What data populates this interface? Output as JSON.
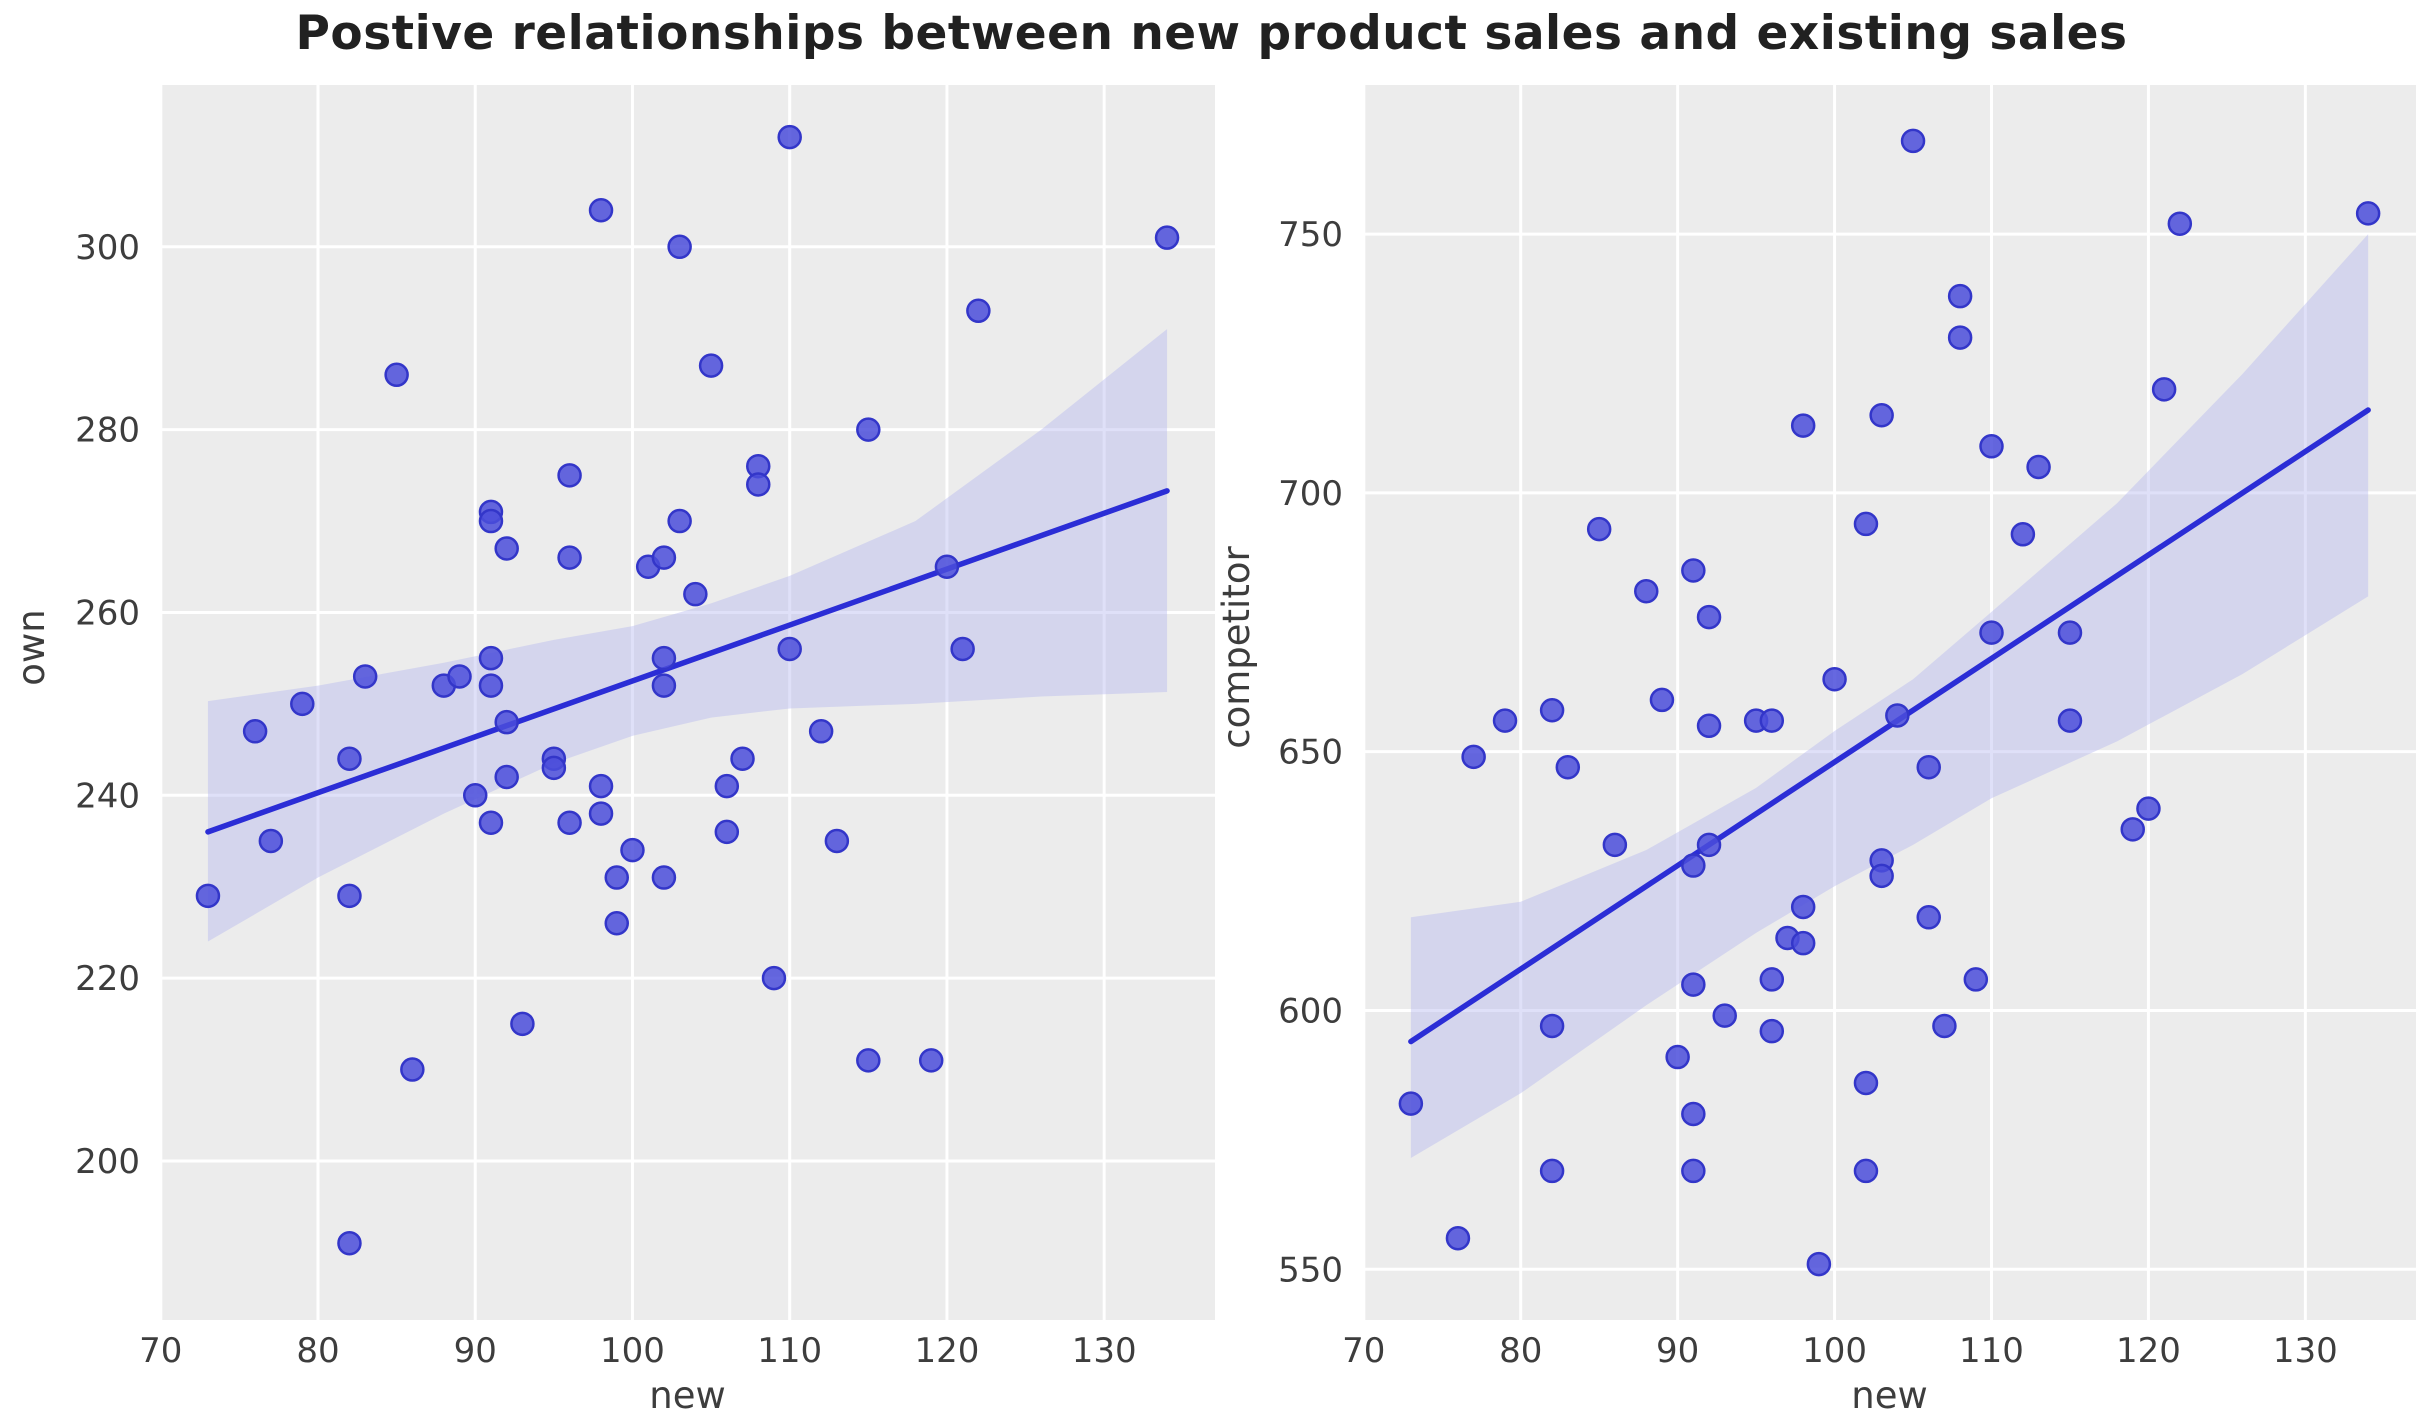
{
  "title": "Postive relationships between new product sales and existing sales",
  "style": {
    "axes_background": "#ececec",
    "gridline_color": "#ffffff",
    "marker_fill": "#4b4edb",
    "marker_edge": "#3336c9",
    "line_color": "#2b2dd6",
    "band_color": "#b9bbef",
    "tick_label_color": "#3d3d3d",
    "axis_label_color": "#3d3d3d",
    "title_color": "#212121"
  },
  "chart_data": [
    {
      "type": "scatter",
      "title": "",
      "xlabel": "new",
      "ylabel": "own",
      "grid": true,
      "legend": "none",
      "xlim": [
        69.95,
        137.05
      ],
      "ylim": [
        182.6,
        317.7
      ],
      "x_ticks": [
        70,
        80,
        90,
        100,
        110,
        120,
        130
      ],
      "y_ticks": [
        200,
        220,
        240,
        260,
        280,
        300
      ],
      "points": [
        [
          73,
          229
        ],
        [
          76,
          247
        ],
        [
          77,
          235
        ],
        [
          79,
          250
        ],
        [
          82,
          244
        ],
        [
          82,
          229
        ],
        [
          82,
          191
        ],
        [
          83,
          253
        ],
        [
          85,
          286
        ],
        [
          86,
          210
        ],
        [
          88,
          252
        ],
        [
          89,
          253
        ],
        [
          90,
          240
        ],
        [
          91,
          271
        ],
        [
          91,
          270
        ],
        [
          91,
          255
        ],
        [
          91,
          252
        ],
        [
          91,
          237
        ],
        [
          92,
          267
        ],
        [
          92,
          248
        ],
        [
          92,
          242
        ],
        [
          93,
          215
        ],
        [
          95,
          244
        ],
        [
          95,
          243
        ],
        [
          96,
          275
        ],
        [
          96,
          266
        ],
        [
          96,
          237
        ],
        [
          98,
          304
        ],
        [
          98,
          241
        ],
        [
          98,
          238
        ],
        [
          99,
          231
        ],
        [
          99,
          226
        ],
        [
          100,
          234
        ],
        [
          101,
          265
        ],
        [
          102,
          266
        ],
        [
          102,
          255
        ],
        [
          102,
          252
        ],
        [
          102,
          231
        ],
        [
          103,
          300
        ],
        [
          103,
          270
        ],
        [
          104,
          262
        ],
        [
          105,
          287
        ],
        [
          106,
          241
        ],
        [
          106,
          236
        ],
        [
          107,
          244
        ],
        [
          108,
          276
        ],
        [
          108,
          274
        ],
        [
          109,
          220
        ],
        [
          110,
          312
        ],
        [
          110,
          256
        ],
        [
          112,
          247
        ],
        [
          113,
          235
        ],
        [
          115,
          280
        ],
        [
          115,
          211
        ],
        [
          119,
          211
        ],
        [
          120,
          265
        ],
        [
          121,
          256
        ],
        [
          122,
          293
        ],
        [
          134,
          301
        ]
      ],
      "regression_line": {
        "x1": 73,
        "y1": 236,
        "x2": 134,
        "y2": 273.3
      },
      "ci_band": {
        "lower": [
          [
            73,
            224
          ],
          [
            80,
            231
          ],
          [
            88,
            238
          ],
          [
            95,
            243.5
          ],
          [
            100,
            246.5
          ],
          [
            105,
            248.5
          ],
          [
            110,
            249.5
          ],
          [
            118,
            250
          ],
          [
            126,
            250.8
          ],
          [
            134,
            251.3
          ]
        ],
        "upper": [
          [
            73,
            250.3
          ],
          [
            80,
            252
          ],
          [
            88,
            254.5
          ],
          [
            95,
            257
          ],
          [
            100,
            258.5
          ],
          [
            105,
            261
          ],
          [
            110,
            264
          ],
          [
            118,
            270
          ],
          [
            126,
            280
          ],
          [
            134,
            291
          ]
        ]
      }
    },
    {
      "type": "scatter",
      "title": "",
      "xlabel": "new",
      "ylabel": "competitor",
      "grid": true,
      "legend": "none",
      "xlim": [
        69.95,
        137.05
      ],
      "ylim": [
        540.2,
        778.8
      ],
      "x_ticks": [
        70,
        80,
        90,
        100,
        110,
        120,
        130
      ],
      "y_ticks": [
        550,
        600,
        650,
        700,
        750
      ],
      "points": [
        [
          73,
          582
        ],
        [
          76,
          556
        ],
        [
          77,
          649
        ],
        [
          79,
          656
        ],
        [
          82,
          658
        ],
        [
          82,
          597
        ],
        [
          82,
          569
        ],
        [
          83,
          647
        ],
        [
          85,
          693
        ],
        [
          86,
          632
        ],
        [
          88,
          681
        ],
        [
          89,
          660
        ],
        [
          90,
          591
        ],
        [
          91,
          685
        ],
        [
          91,
          628
        ],
        [
          91,
          605
        ],
        [
          91,
          580
        ],
        [
          91,
          569
        ],
        [
          92,
          676
        ],
        [
          92,
          655
        ],
        [
          92,
          632
        ],
        [
          93,
          599
        ],
        [
          95,
          656
        ],
        [
          96,
          656
        ],
        [
          96,
          606
        ],
        [
          96,
          596
        ],
        [
          97,
          614
        ],
        [
          98,
          613
        ],
        [
          98,
          620
        ],
        [
          98,
          713
        ],
        [
          99,
          551
        ],
        [
          100,
          664
        ],
        [
          102,
          694
        ],
        [
          102,
          586
        ],
        [
          102,
          569
        ],
        [
          103,
          715
        ],
        [
          103,
          629
        ],
        [
          103,
          626
        ],
        [
          104,
          657
        ],
        [
          105,
          768
        ],
        [
          106,
          647
        ],
        [
          106,
          618
        ],
        [
          107,
          597
        ],
        [
          108,
          738
        ],
        [
          108,
          730
        ],
        [
          109,
          606
        ],
        [
          110,
          709
        ],
        [
          110,
          673
        ],
        [
          112,
          692
        ],
        [
          113,
          705
        ],
        [
          115,
          673
        ],
        [
          115,
          656
        ],
        [
          119,
          635
        ],
        [
          120,
          639
        ],
        [
          121,
          720
        ],
        [
          122,
          752
        ],
        [
          134,
          754
        ]
      ],
      "regression_line": {
        "x1": 73,
        "y1": 594,
        "x2": 134,
        "y2": 716
      },
      "ci_band": {
        "lower": [
          [
            73,
            571.5
          ],
          [
            80,
            584
          ],
          [
            88,
            601
          ],
          [
            95,
            615
          ],
          [
            100,
            624
          ],
          [
            105,
            632
          ],
          [
            110,
            641
          ],
          [
            118,
            652
          ],
          [
            126,
            665
          ],
          [
            134,
            680
          ]
        ],
        "upper": [
          [
            73,
            618
          ],
          [
            80,
            621
          ],
          [
            88,
            631
          ],
          [
            95,
            643
          ],
          [
            100,
            654
          ],
          [
            105,
            664
          ],
          [
            110,
            677
          ],
          [
            118,
            698
          ],
          [
            126,
            723
          ],
          [
            134,
            750
          ]
        ]
      }
    }
  ]
}
